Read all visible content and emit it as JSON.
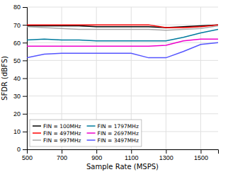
{
  "chart_data": {
    "type": "line",
    "title": "",
    "xlabel": "Sample Rate (MSPS)",
    "ylabel": "SFDR (dBFS)",
    "x": [
      500,
      600,
      700,
      800,
      900,
      1000,
      1100,
      1200,
      1300,
      1400,
      1500,
      1600
    ],
    "xlim": [
      500,
      1600
    ],
    "ylim": [
      0,
      80
    ],
    "xticks": [
      500,
      700,
      900,
      1100,
      1300,
      1500
    ],
    "yticks": [
      0,
      10,
      20,
      30,
      40,
      50,
      60,
      70,
      80
    ],
    "grid": true,
    "legend": "lower left",
    "series": [
      {
        "name": "FIN = 100MHz",
        "color": "#000000",
        "values": [
          69.5,
          69.5,
          69.5,
          69.5,
          69.0,
          69.0,
          69.0,
          69.0,
          68.5,
          69.0,
          69.5,
          70.0
        ]
      },
      {
        "name": "FIN = 497MHz",
        "color": "#ff0000",
        "values": [
          70.0,
          70.0,
          70.0,
          70.0,
          70.0,
          70.0,
          70.0,
          70.0,
          68.5,
          68.5,
          69.0,
          70.0
        ]
      },
      {
        "name": "FIN = 997MHz",
        "color": "#aaaaaa",
        "values": [
          69.0,
          68.5,
          68.0,
          67.5,
          67.5,
          67.5,
          67.5,
          67.5,
          67.0,
          67.5,
          68.0,
          69.5
        ]
      },
      {
        "name": "FIN = 1797MHz",
        "color": "#007b9e",
        "values": [
          61.5,
          62.0,
          61.5,
          61.5,
          61.0,
          61.0,
          61.0,
          61.0,
          61.0,
          63.0,
          65.5,
          67.5
        ]
      },
      {
        "name": "FIN = 2697MHz",
        "color": "#ee00cc",
        "values": [
          58.0,
          58.0,
          58.0,
          58.0,
          58.0,
          58.0,
          58.0,
          58.0,
          58.5,
          61.0,
          62.0,
          62.0
        ]
      },
      {
        "name": "FIN = 3497MHz",
        "color": "#5555ff",
        "values": [
          51.5,
          53.5,
          54.0,
          54.0,
          54.0,
          54.0,
          54.0,
          51.5,
          51.5,
          55.0,
          59.0,
          60.0
        ]
      }
    ]
  }
}
